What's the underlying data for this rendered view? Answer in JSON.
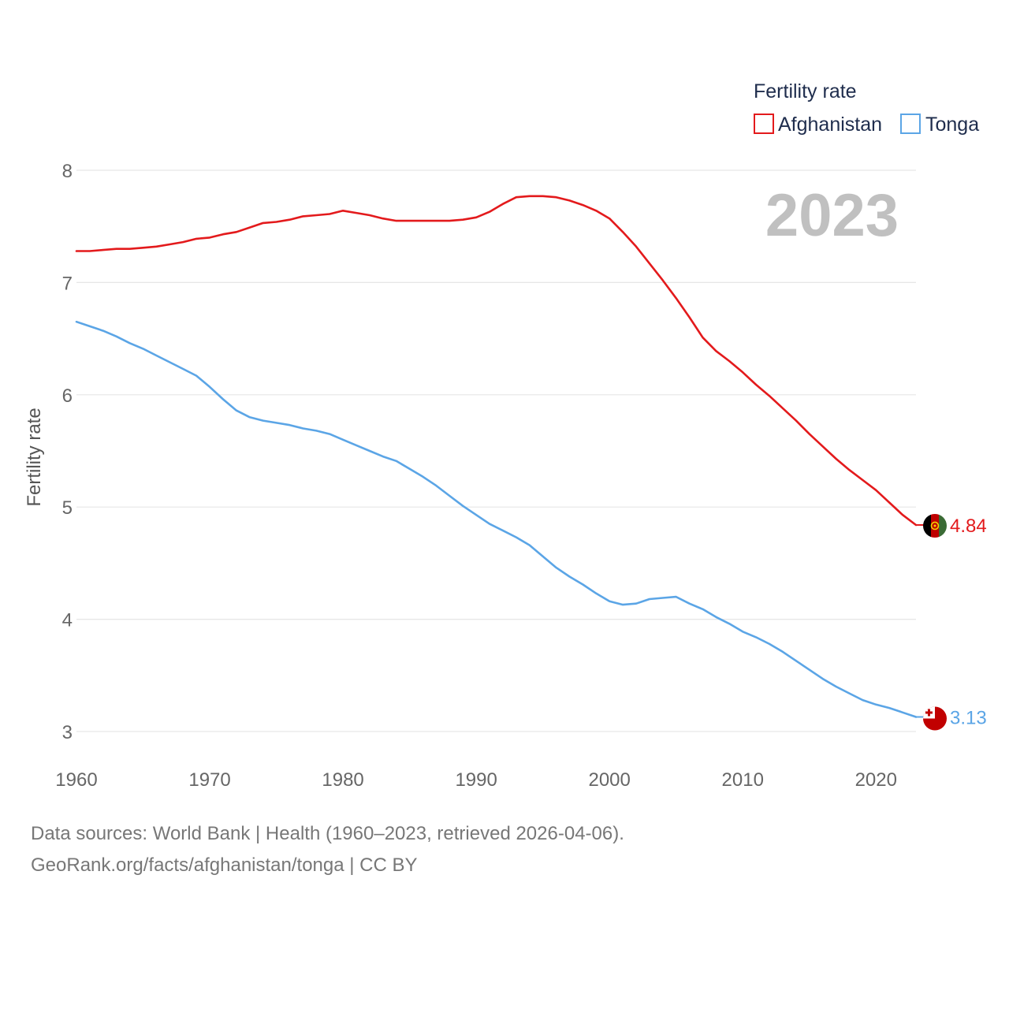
{
  "chart_data": {
    "type": "line",
    "title": "Fertility rate",
    "year_label": "2023",
    "xlabel": "",
    "ylabel": "Fertility rate",
    "xlim": [
      1960,
      2023
    ],
    "ylim": [
      3,
      8
    ],
    "x_ticks": [
      1960,
      1970,
      1980,
      1990,
      2000,
      2010,
      2020
    ],
    "y_ticks": [
      3,
      4,
      5,
      6,
      7,
      8
    ],
    "grid": true,
    "legend_position": "top-right",
    "x": [
      1960,
      1961,
      1962,
      1963,
      1964,
      1965,
      1966,
      1967,
      1968,
      1969,
      1970,
      1971,
      1972,
      1973,
      1974,
      1975,
      1976,
      1977,
      1978,
      1979,
      1980,
      1981,
      1982,
      1983,
      1984,
      1985,
      1986,
      1987,
      1988,
      1989,
      1990,
      1991,
      1992,
      1993,
      1994,
      1995,
      1996,
      1997,
      1998,
      1999,
      2000,
      2001,
      2002,
      2003,
      2004,
      2005,
      2006,
      2007,
      2008,
      2009,
      2010,
      2011,
      2012,
      2013,
      2014,
      2015,
      2016,
      2017,
      2018,
      2019,
      2020,
      2021,
      2022,
      2023
    ],
    "series": [
      {
        "name": "Afghanistan",
        "color": "#e31a1c",
        "end_label": "4.84",
        "flag": "afghanistan-flag",
        "values": [
          7.28,
          7.28,
          7.29,
          7.3,
          7.3,
          7.31,
          7.32,
          7.34,
          7.36,
          7.39,
          7.4,
          7.43,
          7.45,
          7.49,
          7.53,
          7.54,
          7.56,
          7.59,
          7.6,
          7.61,
          7.64,
          7.62,
          7.6,
          7.57,
          7.55,
          7.55,
          7.55,
          7.55,
          7.55,
          7.56,
          7.58,
          7.63,
          7.7,
          7.76,
          7.77,
          7.77,
          7.76,
          7.73,
          7.69,
          7.64,
          7.57,
          7.45,
          7.32,
          7.17,
          7.02,
          6.86,
          6.69,
          6.51,
          6.39,
          6.3,
          6.2,
          6.09,
          5.99,
          5.88,
          5.77,
          5.65,
          5.54,
          5.43,
          5.33,
          5.24,
          5.15,
          5.04,
          4.93,
          4.84
        ]
      },
      {
        "name": "Tonga",
        "color": "#5ba5e6",
        "end_label": "3.13",
        "flag": "tonga-flag",
        "values": [
          6.65,
          6.61,
          6.57,
          6.52,
          6.46,
          6.41,
          6.35,
          6.29,
          6.23,
          6.17,
          6.07,
          5.96,
          5.86,
          5.8,
          5.77,
          5.75,
          5.73,
          5.7,
          5.68,
          5.65,
          5.6,
          5.55,
          5.5,
          5.45,
          5.41,
          5.34,
          5.27,
          5.19,
          5.1,
          5.01,
          4.93,
          4.85,
          4.79,
          4.73,
          4.66,
          4.56,
          4.46,
          4.38,
          4.31,
          4.23,
          4.16,
          4.13,
          4.14,
          4.18,
          4.19,
          4.2,
          4.14,
          4.09,
          4.02,
          3.96,
          3.89,
          3.84,
          3.78,
          3.71,
          3.63,
          3.55,
          3.47,
          3.4,
          3.34,
          3.28,
          3.24,
          3.21,
          3.17,
          3.13
        ]
      }
    ]
  },
  "footer": {
    "sources": "Data sources: World Bank | Health (1960–2023, retrieved 2026-04-06).",
    "credit": "GeoRank.org/facts/afghanistan/tonga | CC BY"
  }
}
